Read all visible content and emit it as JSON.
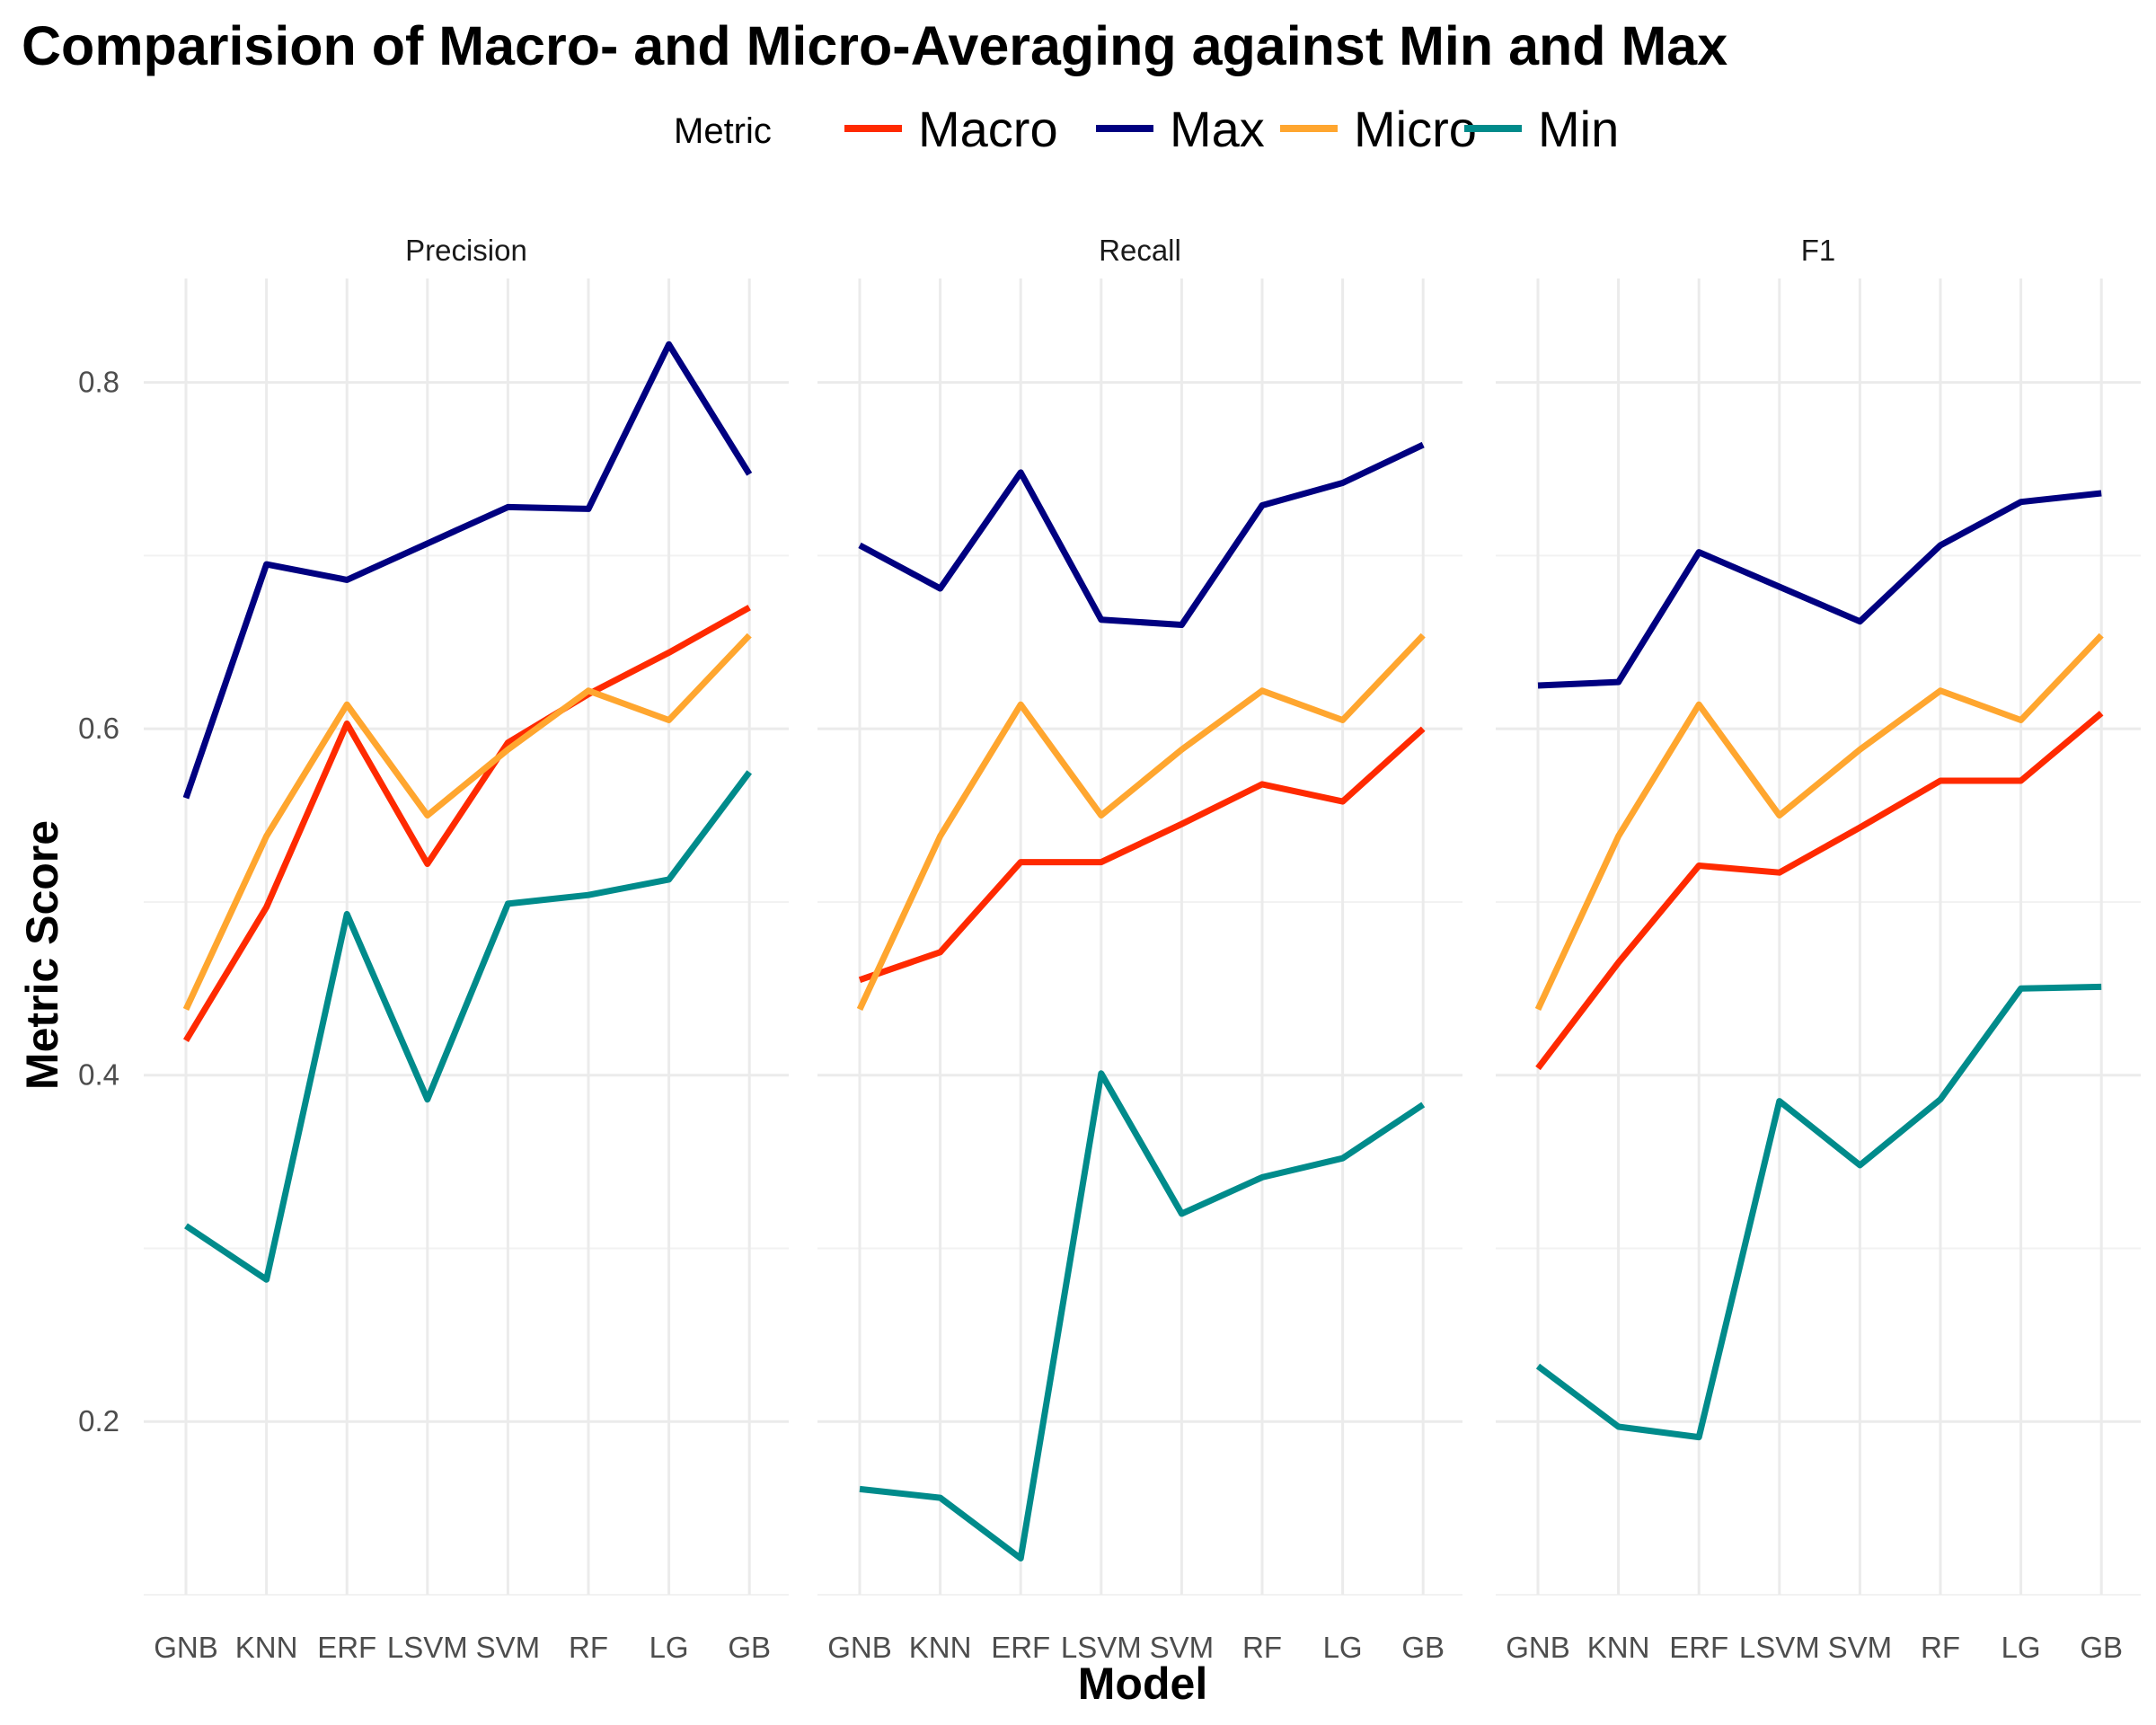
{
  "chart_data": {
    "type": "line",
    "title": "Comparision of Macro- and Micro-Averaging against Min and Max",
    "xlabel": "Model",
    "ylabel": "Metric Score",
    "legend_title": "Metric",
    "legend_position": "top",
    "grid": true,
    "ylim": [
      0.1,
      0.86
    ],
    "yticks": [
      0.2,
      0.4,
      0.6,
      0.8
    ],
    "ytick_labels": [
      "0.2",
      "0.4",
      "0.6",
      "0.8"
    ],
    "categories": [
      "GNB",
      "KNN",
      "ERF",
      "LSVM",
      "SVM",
      "RF",
      "LG",
      "GB"
    ],
    "tick_labels": [
      "GNB",
      "KNN",
      "ERF",
      "LSVM",
      "SVM",
      "RF",
      "LG",
      "GB"
    ],
    "legend": [
      {
        "name": "Macro",
        "color": "#ff2a00"
      },
      {
        "name": "Max",
        "color": "#000080"
      },
      {
        "name": "Micro",
        "color": "#ffa62f"
      },
      {
        "name": "Min",
        "color": "#008b8b"
      }
    ],
    "panels": [
      {
        "strip": "Precision",
        "series": [
          {
            "name": "Macro",
            "values": [
              0.42,
              0.497,
              0.603,
              0.522,
              0.592,
              0.62,
              0.644,
              0.67
            ]
          },
          {
            "name": "Max",
            "values": [
              0.56,
              0.695,
              0.686,
              0.707,
              0.728,
              0.727,
              0.822,
              0.747
            ]
          },
          {
            "name": "Micro",
            "values": [
              0.438,
              0.538,
              0.614,
              0.55,
              0.588,
              0.622,
              0.605,
              0.654
            ]
          },
          {
            "name": "Min",
            "values": [
              0.313,
              0.282,
              0.493,
              0.386,
              0.499,
              0.504,
              0.513,
              0.575
            ]
          }
        ]
      },
      {
        "strip": "Recall",
        "series": [
          {
            "name": "Macro",
            "values": [
              0.455,
              0.471,
              0.523,
              0.523,
              0.545,
              0.568,
              0.558,
              0.6
            ]
          },
          {
            "name": "Max",
            "values": [
              0.706,
              0.681,
              0.748,
              0.663,
              0.66,
              0.729,
              0.742,
              0.764
            ]
          },
          {
            "name": "Micro",
            "values": [
              0.438,
              0.538,
              0.614,
              0.55,
              0.588,
              0.622,
              0.605,
              0.654
            ]
          },
          {
            "name": "Min",
            "values": [
              0.161,
              0.156,
              0.121,
              0.401,
              0.32,
              0.341,
              0.352,
              0.383
            ]
          }
        ]
      },
      {
        "strip": "F1",
        "series": [
          {
            "name": "Macro",
            "values": [
              0.404,
              0.465,
              0.521,
              0.517,
              0.543,
              0.57,
              0.57,
              0.609
            ]
          },
          {
            "name": "Max",
            "values": [
              0.625,
              0.627,
              0.702,
              0.682,
              0.662,
              0.706,
              0.731,
              0.736
            ]
          },
          {
            "name": "Micro",
            "values": [
              0.438,
              0.538,
              0.614,
              0.55,
              0.588,
              0.622,
              0.605,
              0.654
            ]
          },
          {
            "name": "Min",
            "values": [
              0.232,
              0.197,
              0.191,
              0.385,
              0.348,
              0.386,
              0.45,
              0.451
            ]
          }
        ]
      }
    ]
  }
}
